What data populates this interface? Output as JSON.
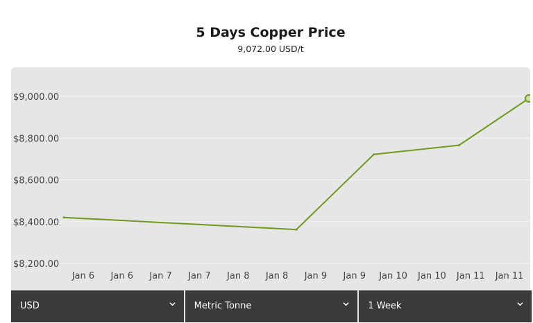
{
  "header": {
    "title": "5 Days Copper Price",
    "subtitle": "9,072.00 USD/t"
  },
  "controls": [
    {
      "label": "USD"
    },
    {
      "label": "Metric Tonne"
    },
    {
      "label": "1 Week"
    }
  ],
  "colors": {
    "line": "#6e9a1f",
    "plot_bg": "#e6e6e6",
    "grid": "#f4f4f4",
    "controls_bg": "#3a3a3a"
  },
  "chart_data": {
    "type": "line",
    "title": "5 Days Copper Price",
    "subtitle": "9,072.00 USD/t",
    "x_tick_labels": [
      "Jan 6",
      "Jan 6",
      "Jan 7",
      "Jan 7",
      "Jan 8",
      "Jan 8",
      "Jan 9",
      "Jan 9",
      "Jan 10",
      "Jan 10",
      "Jan 11",
      "Jan 11"
    ],
    "y_ticks": [
      8200,
      8400,
      8600,
      8800,
      9000
    ],
    "y_tick_labels": [
      "$8,200.00",
      "$8,400.00",
      "$8,600.00",
      "$8,800.00",
      "$9,000.00"
    ],
    "ylim": [
      8200,
      9000
    ],
    "x_index_range": [
      0,
      12
    ],
    "grid": true,
    "series": [
      {
        "points": [
          {
            "x": 0,
            "y": 8420
          },
          {
            "x": 6,
            "y": 8362
          },
          {
            "x": 8,
            "y": 8722
          },
          {
            "x": 10.2,
            "y": 8766
          },
          {
            "x": 12,
            "y": 8990
          }
        ],
        "marker_last": true
      }
    ]
  }
}
